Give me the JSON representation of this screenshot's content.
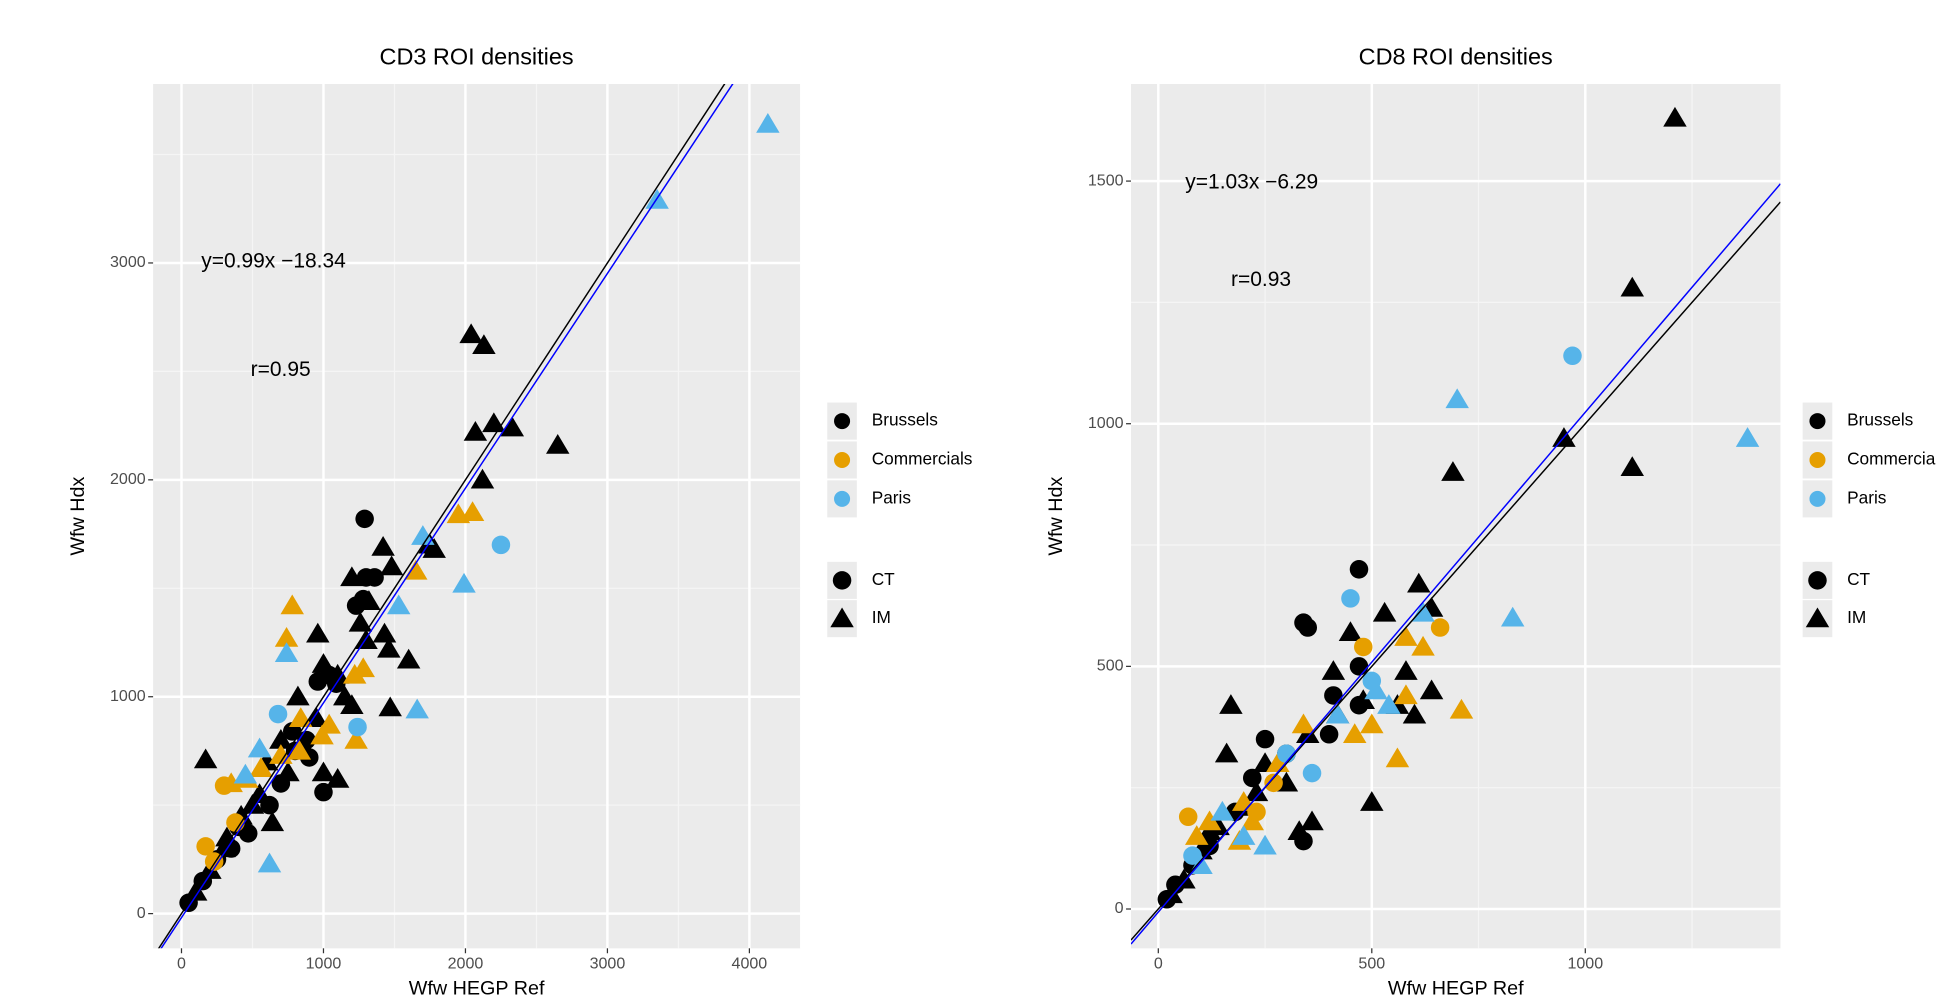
{
  "chart_data": [
    {
      "type": "scatter",
      "title": "CD3 ROI densities",
      "x_label": "Wfw HEGP Ref",
      "y_label": "Wfw Hdx",
      "xlim": [
        -200,
        4357
      ],
      "ylim": [
        -160,
        3825
      ],
      "xticks": [
        0,
        1000,
        2000,
        3000,
        4000
      ],
      "yticks": [
        0,
        1000,
        2000,
        3000
      ],
      "grid": true,
      "minor_grid": true,
      "annotations": [
        "y=0.99x −18.34",
        "r=0.95"
      ],
      "fit_lines": [
        {
          "slope": 1,
          "intercept": 0,
          "color": "#000000"
        },
        {
          "slope": 0.99,
          "intercept": -18.34,
          "color": "#0000ff"
        }
      ],
      "series": [
        {
          "name": "Brussels",
          "color": "#000000",
          "x": [
            2040,
            2130,
            2070,
            2200,
            2330,
            2650,
            2120,
            1420,
            1480,
            1200,
            1320,
            1750,
            1780,
            1600,
            1470,
            1460,
            1260,
            1000,
            960,
            1100,
            820,
            950,
            1150,
            1100,
            850,
            700,
            600,
            500,
            420,
            170,
            320,
            200,
            100,
            300,
            640,
            1300,
            1430,
            1200,
            550,
            1000,
            750,
            1290,
            1300,
            1360,
            1280,
            1230,
            1040,
            960,
            880,
            800,
            900,
            700,
            1000,
            620,
            400,
            250,
            150,
            50,
            350,
            470,
            780,
            1090
          ],
          "y": [
            2670,
            2620,
            2220,
            2260,
            2240,
            2160,
            2000,
            1690,
            1600,
            1550,
            1440,
            1700,
            1680,
            1170,
            950,
            1220,
            1340,
            1150,
            1290,
            1100,
            1000,
            900,
            1000,
            620,
            780,
            800,
            700,
            500,
            450,
            710,
            350,
            200,
            100,
            300,
            420,
            1260,
            1290,
            960,
            550,
            650,
            650,
            1820,
            1550,
            1550,
            1450,
            1420,
            1100,
            1070,
            800,
            750,
            720,
            600,
            560,
            500,
            400,
            250,
            150,
            50,
            300,
            370,
            840,
            1060
          ],
          "marker": [
            "triangle",
            "triangle",
            "triangle",
            "triangle",
            "triangle",
            "triangle",
            "triangle",
            "triangle",
            "triangle",
            "triangle",
            "triangle",
            "triangle",
            "triangle",
            "triangle",
            "triangle",
            "triangle",
            "triangle",
            "triangle",
            "triangle",
            "triangle",
            "triangle",
            "triangle",
            "triangle",
            "triangle",
            "triangle",
            "triangle",
            "triangle",
            "triangle",
            "triangle",
            "triangle",
            "triangle",
            "triangle",
            "triangle",
            "triangle",
            "triangle",
            "triangle",
            "triangle",
            "triangle",
            "triangle",
            "triangle",
            "triangle",
            "circle",
            "circle",
            "circle",
            "circle",
            "circle",
            "circle",
            "circle",
            "circle",
            "circle",
            "circle",
            "circle",
            "circle",
            "circle",
            "circle",
            "circle",
            "circle",
            "circle",
            "circle",
            "circle",
            "circle",
            "circle"
          ]
        },
        {
          "name": "Commercials",
          "color": "#E69F00",
          "x": [
            780,
            740,
            2050,
            1950,
            1650,
            1280,
            1220,
            840,
            990,
            1040,
            1230,
            560,
            350,
            460,
            830,
            700,
            300,
            170,
            230,
            380
          ],
          "y": [
            1420,
            1270,
            1850,
            1840,
            1580,
            1130,
            1100,
            900,
            820,
            870,
            800,
            670,
            600,
            620,
            750,
            730,
            590,
            310,
            240,
            420
          ],
          "marker": [
            "triangle",
            "triangle",
            "triangle",
            "triangle",
            "triangle",
            "triangle",
            "triangle",
            "triangle",
            "triangle",
            "triangle",
            "triangle",
            "triangle",
            "triangle",
            "triangle",
            "triangle",
            "triangle",
            "circle",
            "circle",
            "circle",
            "circle"
          ]
        },
        {
          "name": "Paris",
          "color": "#56B4E9",
          "x": [
            4130,
            3350,
            1990,
            1660,
            1700,
            1530,
            620,
            740,
            450,
            550,
            2250,
            680,
            1240
          ],
          "y": [
            3640,
            3290,
            1520,
            940,
            1740,
            1420,
            230,
            1200,
            640,
            760,
            1700,
            920,
            860
          ],
          "marker": [
            "triangle",
            "triangle",
            "triangle",
            "triangle",
            "triangle",
            "triangle",
            "triangle",
            "triangle",
            "triangle",
            "triangle",
            "circle",
            "circle",
            "circle"
          ]
        }
      ],
      "shape_legend": [
        {
          "name": "CT",
          "marker": "circle"
        },
        {
          "name": "IM",
          "marker": "triangle"
        }
      ]
    },
    {
      "type": "scatter",
      "title": "CD8 ROI densities",
      "x_label": "Wfw HEGP Ref",
      "y_label": "Wfw Hdx",
      "xlim": [
        -64,
        1457
      ],
      "ylim": [
        -81,
        1700
      ],
      "xticks": [
        0,
        500,
        1000
      ],
      "yticks": [
        0,
        500,
        1000,
        1500
      ],
      "grid": true,
      "minor_grid": true,
      "annotations": [
        "y=1.03x −6.29",
        "r=0.93"
      ],
      "fit_lines": [
        {
          "slope": 1,
          "intercept": 0,
          "color": "#000000"
        },
        {
          "slope": 1.03,
          "intercept": -6.29,
          "color": "#0000ff"
        }
      ],
      "series": [
        {
          "name": "Brussels",
          "color": "#000000",
          "x": [
            1210,
            1110,
            950,
            1110,
            690,
            640,
            610,
            530,
            450,
            500,
            580,
            640,
            410,
            170,
            350,
            300,
            200,
            250,
            100,
            60,
            30,
            140,
            420,
            560,
            480,
            360,
            330,
            160,
            230,
            120,
            600,
            470,
            340,
            350,
            410,
            340,
            470,
            300,
            220,
            180,
            120,
            80,
            40,
            20,
            250,
            400,
            470
          ],
          "y": [
            1630,
            1280,
            970,
            910,
            900,
            620,
            670,
            610,
            570,
            220,
            490,
            450,
            490,
            420,
            360,
            260,
            210,
            300,
            120,
            60,
            30,
            170,
            400,
            420,
            430,
            180,
            160,
            320,
            240,
            160,
            400,
            700,
            590,
            580,
            440,
            140,
            500,
            320,
            270,
            200,
            130,
            90,
            50,
            20,
            350,
            360,
            420
          ],
          "marker": [
            "triangle",
            "triangle",
            "triangle",
            "triangle",
            "triangle",
            "triangle",
            "triangle",
            "triangle",
            "triangle",
            "triangle",
            "triangle",
            "triangle",
            "triangle",
            "triangle",
            "triangle",
            "triangle",
            "triangle",
            "triangle",
            "triangle",
            "triangle",
            "triangle",
            "triangle",
            "triangle",
            "triangle",
            "triangle",
            "triangle",
            "triangle",
            "triangle",
            "triangle",
            "triangle",
            "triangle",
            "circle",
            "circle",
            "circle",
            "circle",
            "circle",
            "circle",
            "circle",
            "circle",
            "circle",
            "circle",
            "circle",
            "circle",
            "circle",
            "circle",
            "circle",
            "circle"
          ]
        },
        {
          "name": "Commercials",
          "color": "#E69F00",
          "x": [
            710,
            580,
            620,
            560,
            580,
            500,
            460,
            340,
            280,
            200,
            120,
            90,
            220,
            190,
            660,
            480,
            270,
            230,
            70
          ],
          "y": [
            410,
            560,
            540,
            310,
            440,
            380,
            360,
            380,
            300,
            220,
            180,
            150,
            180,
            140,
            580,
            540,
            260,
            200,
            190
          ],
          "marker": [
            "triangle",
            "triangle",
            "triangle",
            "triangle",
            "triangle",
            "triangle",
            "triangle",
            "triangle",
            "triangle",
            "triangle",
            "triangle",
            "triangle",
            "triangle",
            "triangle",
            "circle",
            "circle",
            "circle",
            "circle",
            "circle"
          ]
        },
        {
          "name": "Paris",
          "color": "#56B4E9",
          "x": [
            700,
            1380,
            830,
            620,
            510,
            540,
            420,
            150,
            100,
            250,
            200,
            970,
            450,
            360,
            500,
            80,
            300
          ],
          "y": [
            1050,
            970,
            600,
            610,
            450,
            420,
            400,
            200,
            90,
            130,
            150,
            1140,
            640,
            280,
            470,
            110,
            320
          ],
          "marker": [
            "triangle",
            "triangle",
            "triangle",
            "triangle",
            "triangle",
            "triangle",
            "triangle",
            "triangle",
            "triangle",
            "triangle",
            "triangle",
            "circle",
            "circle",
            "circle",
            "circle",
            "circle",
            "circle"
          ]
        }
      ],
      "shape_legend": [
        {
          "name": "CT",
          "marker": "circle"
        },
        {
          "name": "IM",
          "marker": "triangle"
        }
      ]
    }
  ]
}
